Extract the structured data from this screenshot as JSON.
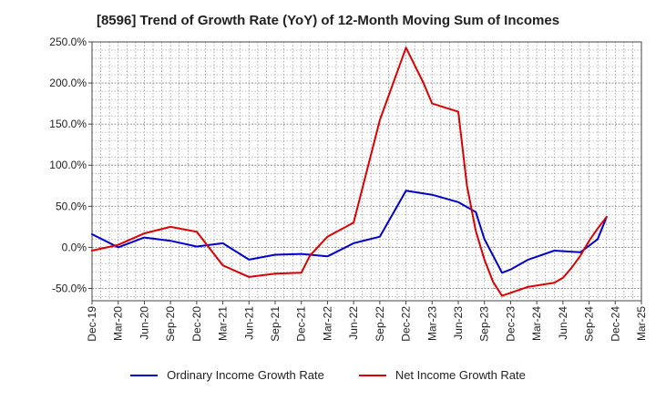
{
  "chart_data": {
    "type": "line",
    "title": "[8596]  Trend of Growth Rate (YoY) of 12-Month Moving Sum of Incomes",
    "xlabel": "",
    "ylabel": "",
    "ylim": [
      -65,
      250
    ],
    "y_ticks": [
      250,
      200,
      150,
      100,
      50,
      0,
      -50
    ],
    "y_tick_labels": [
      "250.0%",
      "200.0%",
      "150.0%",
      "100.0%",
      "50.0%",
      "0.0%",
      "-50.0%"
    ],
    "x_tick_labels": [
      "Dec-19",
      "Mar-20",
      "Jun-20",
      "Sep-20",
      "Dec-20",
      "Mar-21",
      "Jun-21",
      "Sep-21",
      "Dec-21",
      "Mar-22",
      "Jun-22",
      "Sep-22",
      "Dec-22",
      "Mar-23",
      "Jun-23",
      "Sep-23",
      "Dec-23",
      "Mar-24",
      "Jun-24",
      "Sep-24",
      "Dec-24",
      "Mar-25"
    ],
    "grid": true,
    "legend_position": "bottom",
    "series": [
      {
        "name": "Ordinary Income Growth Rate",
        "color": "#0000cc",
        "points": [
          [
            0,
            16
          ],
          [
            1,
            0
          ],
          [
            2,
            12
          ],
          [
            3,
            8
          ],
          [
            4,
            1
          ],
          [
            5,
            5
          ],
          [
            6,
            -15
          ],
          [
            7,
            -9
          ],
          [
            8,
            -8
          ],
          [
            9,
            -11
          ],
          [
            10,
            5
          ],
          [
            11,
            13
          ],
          [
            12,
            69
          ],
          [
            13,
            64
          ],
          [
            14,
            55
          ],
          [
            14.67,
            43
          ],
          [
            15,
            10
          ],
          [
            15.67,
            -31
          ],
          [
            16,
            -27
          ],
          [
            16.67,
            -15
          ],
          [
            17.67,
            -4
          ],
          [
            18.67,
            -6
          ],
          [
            19.33,
            10
          ],
          [
            19.67,
            37
          ]
        ]
      },
      {
        "name": "Net Income Growth Rate",
        "color": "#dd0000",
        "points": [
          [
            0,
            -4
          ],
          [
            1,
            3
          ],
          [
            2,
            17
          ],
          [
            3,
            25
          ],
          [
            4,
            19
          ],
          [
            5,
            -22
          ],
          [
            6,
            -36
          ],
          [
            7,
            -32
          ],
          [
            8,
            -31
          ],
          [
            8.33,
            -10
          ],
          [
            9,
            13
          ],
          [
            10,
            30
          ],
          [
            11,
            155
          ],
          [
            12,
            243
          ],
          [
            12.67,
            200
          ],
          [
            13,
            175
          ],
          [
            14,
            165
          ],
          [
            14.33,
            75
          ],
          [
            14.67,
            20
          ],
          [
            15,
            -15
          ],
          [
            15.33,
            -42
          ],
          [
            15.67,
            -59
          ],
          [
            16.67,
            -48
          ],
          [
            17.67,
            -43
          ],
          [
            18,
            -37
          ],
          [
            18.33,
            -25
          ],
          [
            18.67,
            -10
          ],
          [
            19,
            8
          ],
          [
            19.33,
            23
          ],
          [
            19.67,
            37
          ]
        ]
      }
    ]
  }
}
